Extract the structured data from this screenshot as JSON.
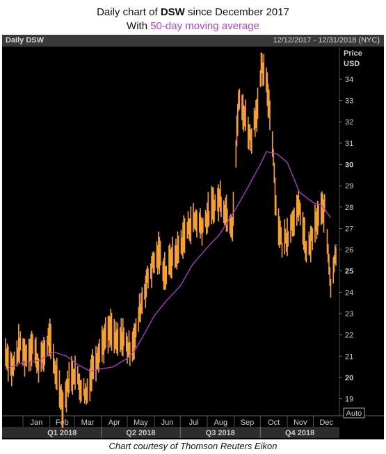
{
  "title": {
    "prefix": "Daily chart of",
    "ticker": "DSW",
    "suffix": "since December 2017",
    "line2_prefix": "With",
    "line2_highlight": "50-day moving average"
  },
  "header": {
    "label": "Daily DSW",
    "range": "12/12/2017 - 12/31/2018 (NYC)"
  },
  "credit": "Chart courtesy of Thomson Reuters Eikon",
  "colors": {
    "price": "#f7a02b",
    "ma": "#b43ad8",
    "background": "#000000",
    "axis_text": "#d0d0d0"
  },
  "chart_data": {
    "type": "line",
    "y_axis_label": [
      "Price",
      "USD"
    ],
    "y_ticks": [
      19,
      20,
      21,
      22,
      23,
      24,
      25,
      26,
      27,
      28,
      29,
      30,
      31,
      32,
      33,
      34
    ],
    "ylim": [
      18.3,
      35.5
    ],
    "month_labels": [
      "Jan",
      "Feb",
      "Mar",
      "Apr",
      "May",
      "Jun",
      "Jul",
      "Aug",
      "Sep",
      "Oct",
      "Nov",
      "Dec"
    ],
    "quarter_labels": [
      "Q1 2018",
      "Q2 2018",
      "Q3 2018",
      "Q4 2018"
    ],
    "auto_label": "Auto",
    "grid": false,
    "x_range": [
      "2017-12-12",
      "2018-12-31"
    ],
    "series": [
      {
        "name": "DSW",
        "kind": "daily-range",
        "points": [
          [
            "2017-12-12",
            21.2
          ],
          [
            "2017-12-20",
            20.4
          ],
          [
            "2017-12-28",
            21.5
          ],
          [
            "2018-01-05",
            21.0
          ],
          [
            "2018-01-12",
            21.6
          ],
          [
            "2018-01-19",
            20.6
          ],
          [
            "2018-01-26",
            21.2
          ],
          [
            "2018-01-31",
            21.9
          ],
          [
            "2018-02-06",
            20.5
          ],
          [
            "2018-02-12",
            19.6
          ],
          [
            "2018-02-16",
            18.5
          ],
          [
            "2018-02-22",
            19.8
          ],
          [
            "2018-03-01",
            20.3
          ],
          [
            "2018-03-08",
            19.6
          ],
          [
            "2018-03-15",
            19.2
          ],
          [
            "2018-03-22",
            20.5
          ],
          [
            "2018-03-29",
            21.2
          ],
          [
            "2018-04-05",
            21.8
          ],
          [
            "2018-04-12",
            22.2
          ],
          [
            "2018-04-19",
            21.6
          ],
          [
            "2018-04-26",
            21.9
          ],
          [
            "2018-05-03",
            21.3
          ],
          [
            "2018-05-10",
            21.9
          ],
          [
            "2018-05-17",
            23.5
          ],
          [
            "2018-05-24",
            24.6
          ],
          [
            "2018-05-31",
            25.4
          ],
          [
            "2018-06-07",
            25.8
          ],
          [
            "2018-06-14",
            24.8
          ],
          [
            "2018-06-21",
            25.6
          ],
          [
            "2018-06-28",
            25.9
          ],
          [
            "2018-07-05",
            26.6
          ],
          [
            "2018-07-12",
            27.2
          ],
          [
            "2018-07-19",
            27.4
          ],
          [
            "2018-07-26",
            27.1
          ],
          [
            "2018-08-02",
            27.6
          ],
          [
            "2018-08-09",
            28.1
          ],
          [
            "2018-08-16",
            28.4
          ],
          [
            "2018-08-23",
            27.7
          ],
          [
            "2018-08-30",
            27.2
          ],
          [
            "2018-09-06",
            33.0
          ],
          [
            "2018-09-13",
            32.3
          ],
          [
            "2018-09-20",
            31.2
          ],
          [
            "2018-09-27",
            32.6
          ],
          [
            "2018-10-03",
            34.5
          ],
          [
            "2018-10-09",
            33.6
          ],
          [
            "2018-10-15",
            31.2
          ],
          [
            "2018-10-19",
            28.0
          ],
          [
            "2018-10-26",
            26.2
          ],
          [
            "2018-11-02",
            26.8
          ],
          [
            "2018-11-09",
            27.6
          ],
          [
            "2018-11-16",
            27.9
          ],
          [
            "2018-11-23",
            25.8
          ],
          [
            "2018-11-30",
            26.6
          ],
          [
            "2018-12-07",
            27.6
          ],
          [
            "2018-12-14",
            27.9
          ],
          [
            "2018-12-21",
            24.4
          ],
          [
            "2018-12-28",
            26.2
          ]
        ]
      },
      {
        "name": "50-day moving average",
        "kind": "line",
        "points": [
          [
            "2017-12-12",
            20.4
          ],
          [
            "2018-01-01",
            20.7
          ],
          [
            "2018-01-20",
            20.8
          ],
          [
            "2018-02-05",
            21.2
          ],
          [
            "2018-02-20",
            21.0
          ],
          [
            "2018-03-05",
            20.6
          ],
          [
            "2018-03-19",
            20.3
          ],
          [
            "2018-04-01",
            20.4
          ],
          [
            "2018-04-15",
            20.5
          ],
          [
            "2018-05-01",
            20.9
          ],
          [
            "2018-05-10",
            21.3
          ],
          [
            "2018-05-20",
            22.0
          ],
          [
            "2018-06-01",
            22.9
          ],
          [
            "2018-06-15",
            23.6
          ],
          [
            "2018-07-01",
            24.3
          ],
          [
            "2018-07-15",
            25.3
          ],
          [
            "2018-08-01",
            26.1
          ],
          [
            "2018-08-15",
            26.7
          ],
          [
            "2018-09-01",
            27.8
          ],
          [
            "2018-09-15",
            28.8
          ],
          [
            "2018-10-01",
            30.0
          ],
          [
            "2018-10-08",
            30.6
          ],
          [
            "2018-10-20",
            30.5
          ],
          [
            "2018-11-01",
            30.1
          ],
          [
            "2018-11-15",
            28.7
          ],
          [
            "2018-12-01",
            28.2
          ],
          [
            "2018-12-10",
            28.1
          ],
          [
            "2018-12-21",
            27.5
          ]
        ]
      }
    ]
  }
}
